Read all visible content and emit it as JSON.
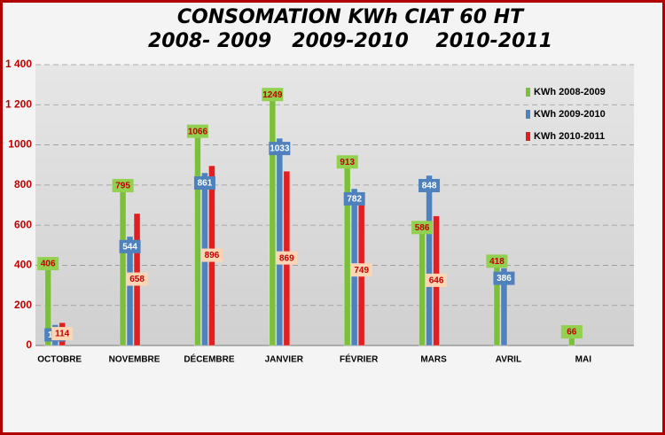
{
  "chart_data": {
    "type": "bar",
    "title": "CONSOMATION KWh CIAT 60 HT",
    "subtitle": "2008- 2009   2009-2010    2010-2011",
    "categories": [
      "OCTOBRE",
      "NOVEMBRE",
      "DÉCEMBRE",
      "JANVIER",
      "FÉVRIER",
      "MARS",
      "AVRIL",
      "MAI"
    ],
    "series": [
      {
        "name": "KWh 2008-2009",
        "color": "#7cbf3a",
        "values": [
          406,
          795,
          1066,
          1249,
          913,
          586,
          418,
          66
        ]
      },
      {
        "name": "KWh 2009-2010",
        "color": "#4f81bd",
        "values": [
          104,
          544,
          861,
          1033,
          782,
          848,
          386,
          null
        ]
      },
      {
        "name": "KWh 2010-2011",
        "color": "#e02020",
        "values": [
          114,
          658,
          896,
          869,
          749,
          646,
          null,
          null
        ]
      }
    ],
    "ylim": [
      0,
      1400
    ],
    "yticks": [
      0,
      200,
      400,
      600,
      800,
      1000,
      {
        "value": 1200,
        "label": "1 200"
      },
      {
        "value": 1400,
        "label": "1 400"
      }
    ],
    "grid": true
  }
}
